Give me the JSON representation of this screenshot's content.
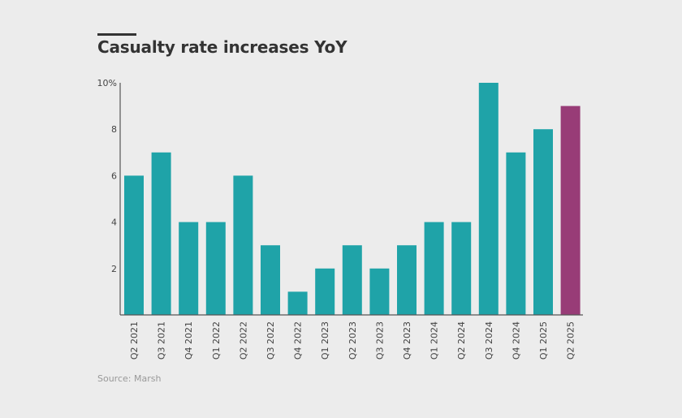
{
  "title": "Casualty rate increases YoY",
  "source": "Source: Marsh",
  "chart_data": {
    "type": "bar",
    "title": "Casualty rate increases YoY",
    "categories": [
      "Q2 2021",
      "Q3 2021",
      "Q4 2021",
      "Q1 2022",
      "Q2 2022",
      "Q3 2022",
      "Q4 2022",
      "Q1 2023",
      "Q2 2023",
      "Q3 2023",
      "Q4 2023",
      "Q1 2024",
      "Q2 2024",
      "Q3 2024",
      "Q4 2024",
      "Q1 2025",
      "Q2 2025"
    ],
    "values": [
      6,
      7,
      4,
      4,
      6,
      3,
      1,
      2,
      3,
      2,
      3,
      4,
      4,
      10,
      7,
      8,
      9
    ],
    "ylim": [
      0,
      10
    ],
    "yticks": [
      2,
      4,
      6,
      8,
      10
    ],
    "ytick_labels": [
      "2",
      "4",
      "6",
      "8",
      "10%"
    ],
    "grid": false,
    "colors": {
      "default": "#1fa3a8",
      "highlight": "#983c77"
    },
    "highlight_index": 16
  }
}
